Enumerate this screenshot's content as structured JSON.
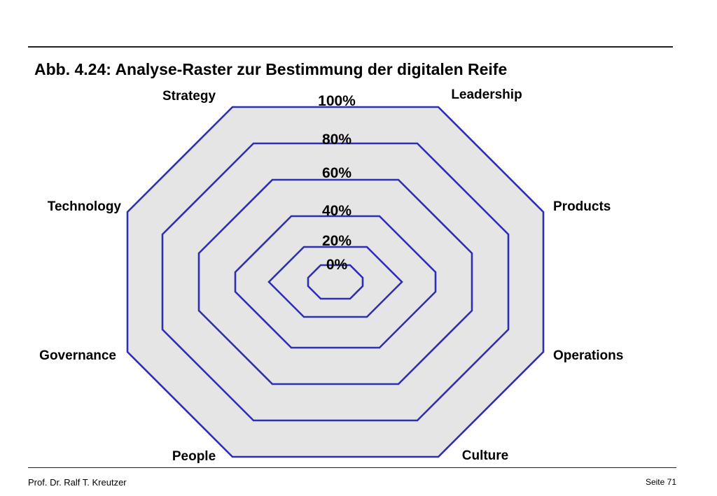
{
  "title": "Abb. 4.24: Analyse-Raster zur Bestimmung der digitalen Reife",
  "footer": {
    "author": "Prof. Dr. Ralf T. Kreutzer",
    "page": "Seite 71"
  },
  "colors": {
    "fill": "#e5e5e5",
    "stroke": "#2e2fb0",
    "rules": "#222222"
  },
  "diagram": {
    "axes": [
      "Strategy",
      "Leadership",
      "Products",
      "Operations",
      "Culture",
      "People",
      "Governance",
      "Technology"
    ],
    "levels": [
      "0%",
      "20%",
      "40%",
      "60%",
      "80%",
      "100%"
    ]
  }
}
